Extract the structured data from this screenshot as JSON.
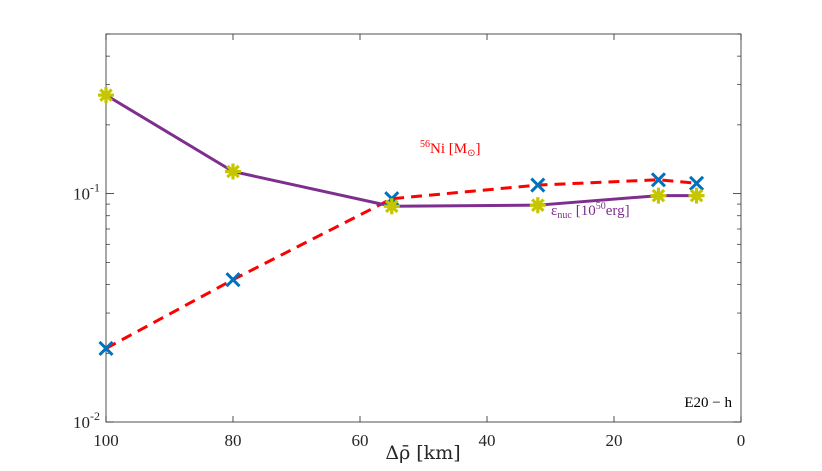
{
  "chart_data": {
    "type": "line",
    "title": "",
    "xlabel": "Δρ̄ [km]",
    "ylabel": "",
    "xlim": [
      100,
      0
    ],
    "ylim": [
      0.01,
      0.5
    ],
    "yscale": "log",
    "x_reversed": true,
    "x_ticks": [
      100,
      80,
      60,
      40,
      20,
      0
    ],
    "y_ticks": [
      {
        "value": 0.01,
        "base": "10",
        "exp": "-2"
      },
      {
        "value": 0.1,
        "base": "10",
        "exp": "-1"
      }
    ],
    "series": [
      {
        "name": "56Ni [M⊙]",
        "style": "dashed",
        "marker": "x",
        "line_color": "#ff0000",
        "marker_color": "#0072bd",
        "x": [
          100,
          80,
          55,
          32,
          13,
          7
        ],
        "y": [
          0.021,
          0.042,
          0.095,
          0.109,
          0.115,
          0.111
        ]
      },
      {
        "name": "ε_nuc [10^50 erg]",
        "style": "solid",
        "marker": "asterisk",
        "line_color": "#7e2f8e",
        "marker_color": "#c6c600",
        "x": [
          100,
          80,
          55,
          32,
          13,
          7
        ],
        "y": [
          0.27,
          0.125,
          0.088,
          0.089,
          0.098,
          0.098
        ]
      }
    ],
    "annotations": {
      "ni": {
        "sup": "56",
        "text": "Ni [M",
        "sub": "⊙",
        "close": "]"
      },
      "enuc": {
        "symbol": "ε",
        "sub": "nuc",
        "text1": "[10",
        "sup": "50",
        "text2": "erg]"
      },
      "corner": "E20 − h"
    }
  }
}
